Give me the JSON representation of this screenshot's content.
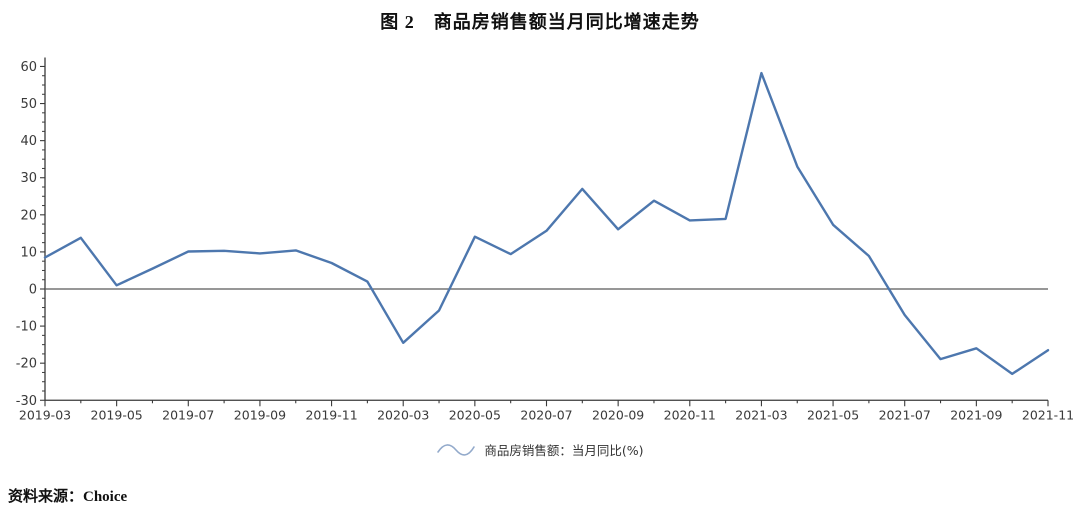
{
  "page": {
    "source_note": "资料来源：Choice"
  },
  "chart_data": {
    "type": "line",
    "title": "图 2　商品房销售额当月同比增速走势",
    "x": [
      "2019-03",
      "2019-04",
      "2019-05",
      "2019-06",
      "2019-07",
      "2019-08",
      "2019-09",
      "2019-10",
      "2019-11",
      "2019-12",
      "2020-03",
      "2020-04",
      "2020-05",
      "2020-06",
      "2020-07",
      "2020-08",
      "2020-09",
      "2020-10",
      "2020-11",
      "2020-12",
      "2021-03",
      "2021-04",
      "2021-05",
      "2021-06",
      "2021-07",
      "2021-08",
      "2021-09",
      "2021-10",
      "2021-11"
    ],
    "series": [
      {
        "name": "商品房销售额：当月同比(%)",
        "values": [
          8.5,
          13.8,
          1.0,
          5.5,
          10.1,
          10.3,
          9.6,
          10.4,
          7.0,
          2.0,
          -14.5,
          -5.8,
          14.1,
          9.4,
          15.7,
          27.0,
          16.1,
          23.8,
          18.5,
          18.9,
          58.2,
          33.0,
          17.3,
          8.9,
          -7.0,
          -18.9,
          -16.0,
          -22.9,
          -16.5
        ]
      }
    ],
    "x_tick_labels": [
      "2019-03",
      "2019-05",
      "2019-07",
      "2019-09",
      "2019-11",
      "2020-03",
      "2020-05",
      "2020-07",
      "2020-09",
      "2020-11",
      "2021-03",
      "2021-05",
      "2021-07",
      "2021-09",
      "2021-11"
    ],
    "y_ticks": [
      -30,
      -20,
      -10,
      0,
      10,
      20,
      30,
      40,
      50,
      60
    ],
    "ylim": [
      -30,
      60
    ],
    "grid": false,
    "legend_position": "bottom",
    "colors": {
      "line": "#4d77ae",
      "legend_icon": "#93aacb",
      "axis": "#3a3a3a",
      "zero_line": "#595959",
      "tick_label": "#3a3a3a"
    }
  }
}
